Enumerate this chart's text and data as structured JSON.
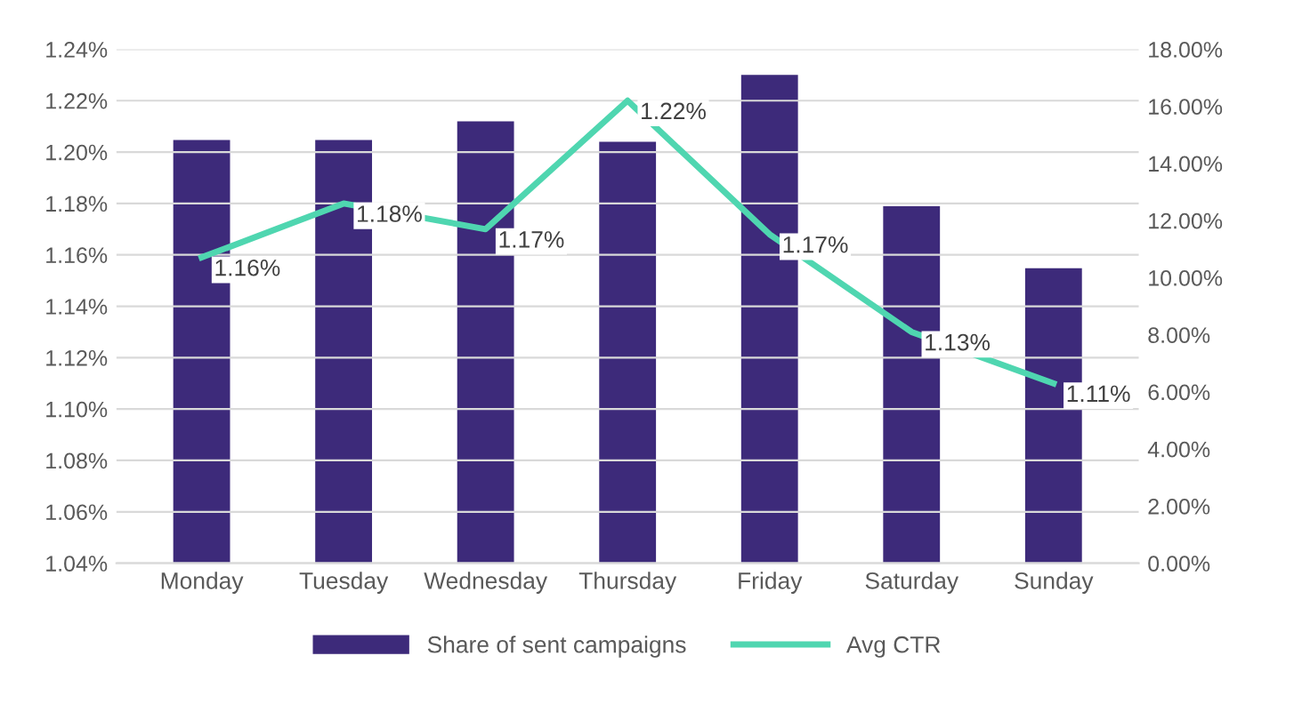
{
  "chart_data": {
    "type": "bar",
    "categories": [
      "Monday",
      "Tuesday",
      "Wednesday",
      "Thursday",
      "Friday",
      "Saturday",
      "Sunday"
    ],
    "series": [
      {
        "name": "Share of sent campaigns",
        "axis": "y2",
        "color": "#3d2a7a",
        "values": [
          14.82,
          14.82,
          15.48,
          14.76,
          17.1,
          12.5,
          10.33
        ]
      },
      {
        "name": "Avg CTR",
        "type": "line",
        "axis": "y",
        "color": "#4fd6b0",
        "values": [
          1.159,
          1.18,
          1.17,
          1.22,
          1.168,
          1.13,
          1.11
        ],
        "value_labels": [
          "1.16%",
          "1.18%",
          "1.17%",
          "1.22%",
          "1.17%",
          "1.13%",
          "1.11%"
        ]
      }
    ],
    "ylim": [
      1.04,
      1.24
    ],
    "yticks": [
      {
        "value": 1.04,
        "label": "1.04%"
      },
      {
        "value": 1.06,
        "label": "1.06%"
      },
      {
        "value": 1.08,
        "label": "1.08%"
      },
      {
        "value": 1.1,
        "label": "1.10%"
      },
      {
        "value": 1.12,
        "label": "1.12%"
      },
      {
        "value": 1.14,
        "label": "1.14%"
      },
      {
        "value": 1.16,
        "label": "1.16%"
      },
      {
        "value": 1.18,
        "label": "1.18%"
      },
      {
        "value": 1.2,
        "label": "1.20%"
      },
      {
        "value": 1.22,
        "label": "1.22%"
      },
      {
        "value": 1.24,
        "label": "1.24%"
      }
    ],
    "y2lim": [
      0,
      18
    ],
    "y2ticks": [
      {
        "value": 0,
        "label": "0.00%"
      },
      {
        "value": 2,
        "label": "2.00%"
      },
      {
        "value": 4,
        "label": "4.00%"
      },
      {
        "value": 6,
        "label": "6.00%"
      },
      {
        "value": 8,
        "label": "8.00%"
      },
      {
        "value": 10,
        "label": "10.00%"
      },
      {
        "value": 12,
        "label": "12.00%"
      },
      {
        "value": 14,
        "label": "14.00%"
      },
      {
        "value": 16,
        "label": "16.00%"
      },
      {
        "value": 18,
        "label": "18.00%"
      }
    ],
    "grid": "y",
    "legend": "bottom",
    "marker": "none",
    "line_style": "solid"
  }
}
